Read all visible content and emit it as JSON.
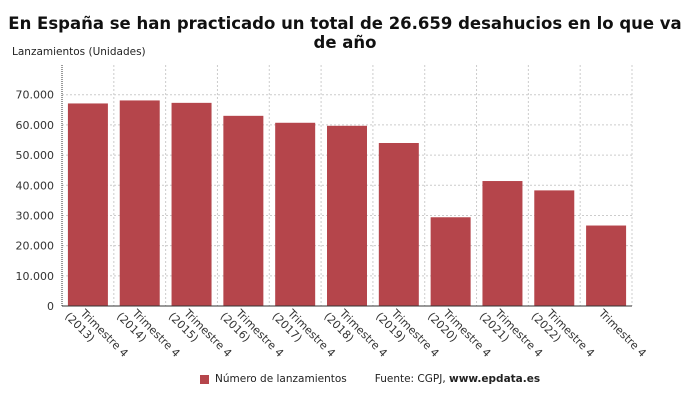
{
  "chart_data": {
    "type": "bar",
    "title": "En España se han practicado un total de 26.659 desahucios en lo que va de año",
    "ylabel": "Lanzamientos (Unidades)",
    "xlabel": "",
    "categories": [
      [
        "Trimestre 4",
        "(2013)"
      ],
      [
        "Trimestre 4",
        "(2014)"
      ],
      [
        "Trimestre 4",
        "(2015)"
      ],
      [
        "Trimestre 4",
        "(2016)"
      ],
      [
        "Trimestre 4",
        "(2017)"
      ],
      [
        "Trimestre 4",
        "(2018)"
      ],
      [
        "Trimestre 4",
        "(2019)"
      ],
      [
        "Trimestre 4",
        "(2020)"
      ],
      [
        "Trimestre 4",
        "(2021)"
      ],
      [
        "Trimestre 4",
        "(2022)"
      ],
      [
        "Trimestre 4",
        ""
      ]
    ],
    "series": [
      {
        "name": "Número de lanzamientos",
        "color": "#b5454b",
        "values": [
          67100,
          68100,
          67300,
          63000,
          60700,
          59700,
          54000,
          29400,
          41400,
          38300,
          26659
        ]
      }
    ],
    "ylim": [
      0,
      70000
    ],
    "yticks": [
      "0",
      "10.000",
      "20.000",
      "30.000",
      "40.000",
      "50.000",
      "60.000",
      "70.000"
    ],
    "grid": true,
    "legend_position": "bottom"
  },
  "source": "Fuente: CGPJ, ",
  "source_site": "www.epdata.es"
}
